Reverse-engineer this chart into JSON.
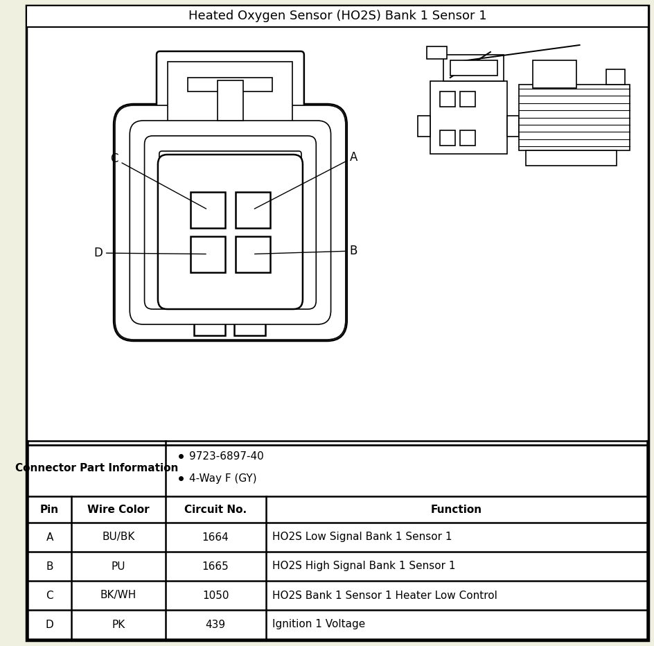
{
  "title": "Heated Oxygen Sensor (HO2S) Bank 1 Sensor 1",
  "bg_color": "#f0f0e0",
  "border_color": "#000000",
  "table_header": [
    "Pin",
    "Wire Color",
    "Circuit No.",
    "Function"
  ],
  "connector_label": "Connector Part Information",
  "connector_info": [
    "9723-6897-40",
    "4-Way F (GY)"
  ],
  "pins": [
    {
      "pin": "A",
      "color": "BU/BK",
      "circuit": "1664",
      "function": "HO2S Low Signal Bank 1 Sensor 1"
    },
    {
      "pin": "B",
      "color": "PU",
      "circuit": "1665",
      "function": "HO2S High Signal Bank 1 Sensor 1"
    },
    {
      "pin": "C",
      "color": "BK/WH",
      "circuit": "1050",
      "function": "HO2S Bank 1 Sensor 1 Heater Low Control"
    },
    {
      "pin": "D",
      "color": "PK",
      "circuit": "439",
      "function": "Ignition 1 Voltage"
    }
  ]
}
